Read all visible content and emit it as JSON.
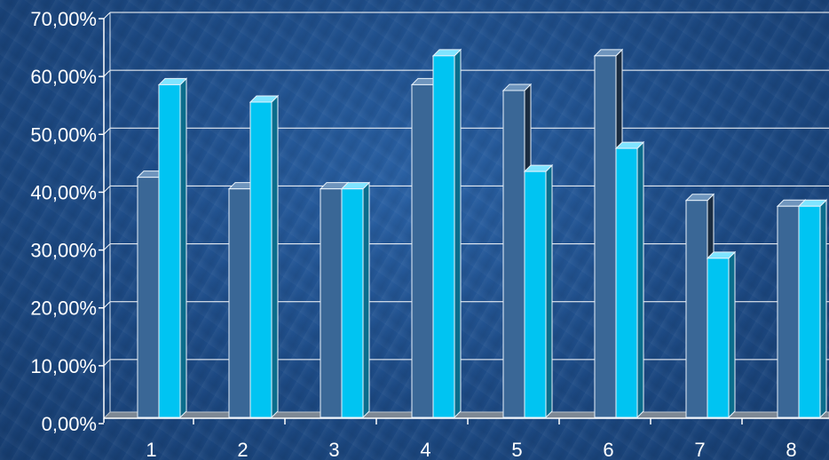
{
  "chart_data": {
    "type": "bar",
    "categories": [
      "1",
      "2",
      "3",
      "4",
      "5",
      "6",
      "7",
      "8"
    ],
    "series": [
      {
        "values": [
          41.5,
          39.5,
          39.5,
          57.5,
          56.5,
          62.5,
          37.5,
          36.5
        ]
      },
      {
        "values": [
          57.5,
          54.5,
          39.5,
          62.5,
          42.5,
          46.5,
          27.5,
          36.5
        ]
      }
    ],
    "y_ticks": [
      "0,00%",
      "10,00%",
      "20,00%",
      "30,00%",
      "40,00%",
      "50,00%",
      "60,00%",
      "70,00%"
    ],
    "ylim": [
      0,
      70
    ],
    "grid": true,
    "colors": {
      "series1_front": "#3a6796",
      "series1_side": "#1a2c40",
      "series1_top": "#6f95bd",
      "series2_front": "#00c4f2",
      "series2_side": "#0b6d8c",
      "series2_top": "#7fe4ff",
      "grid": "#ffffff"
    }
  }
}
